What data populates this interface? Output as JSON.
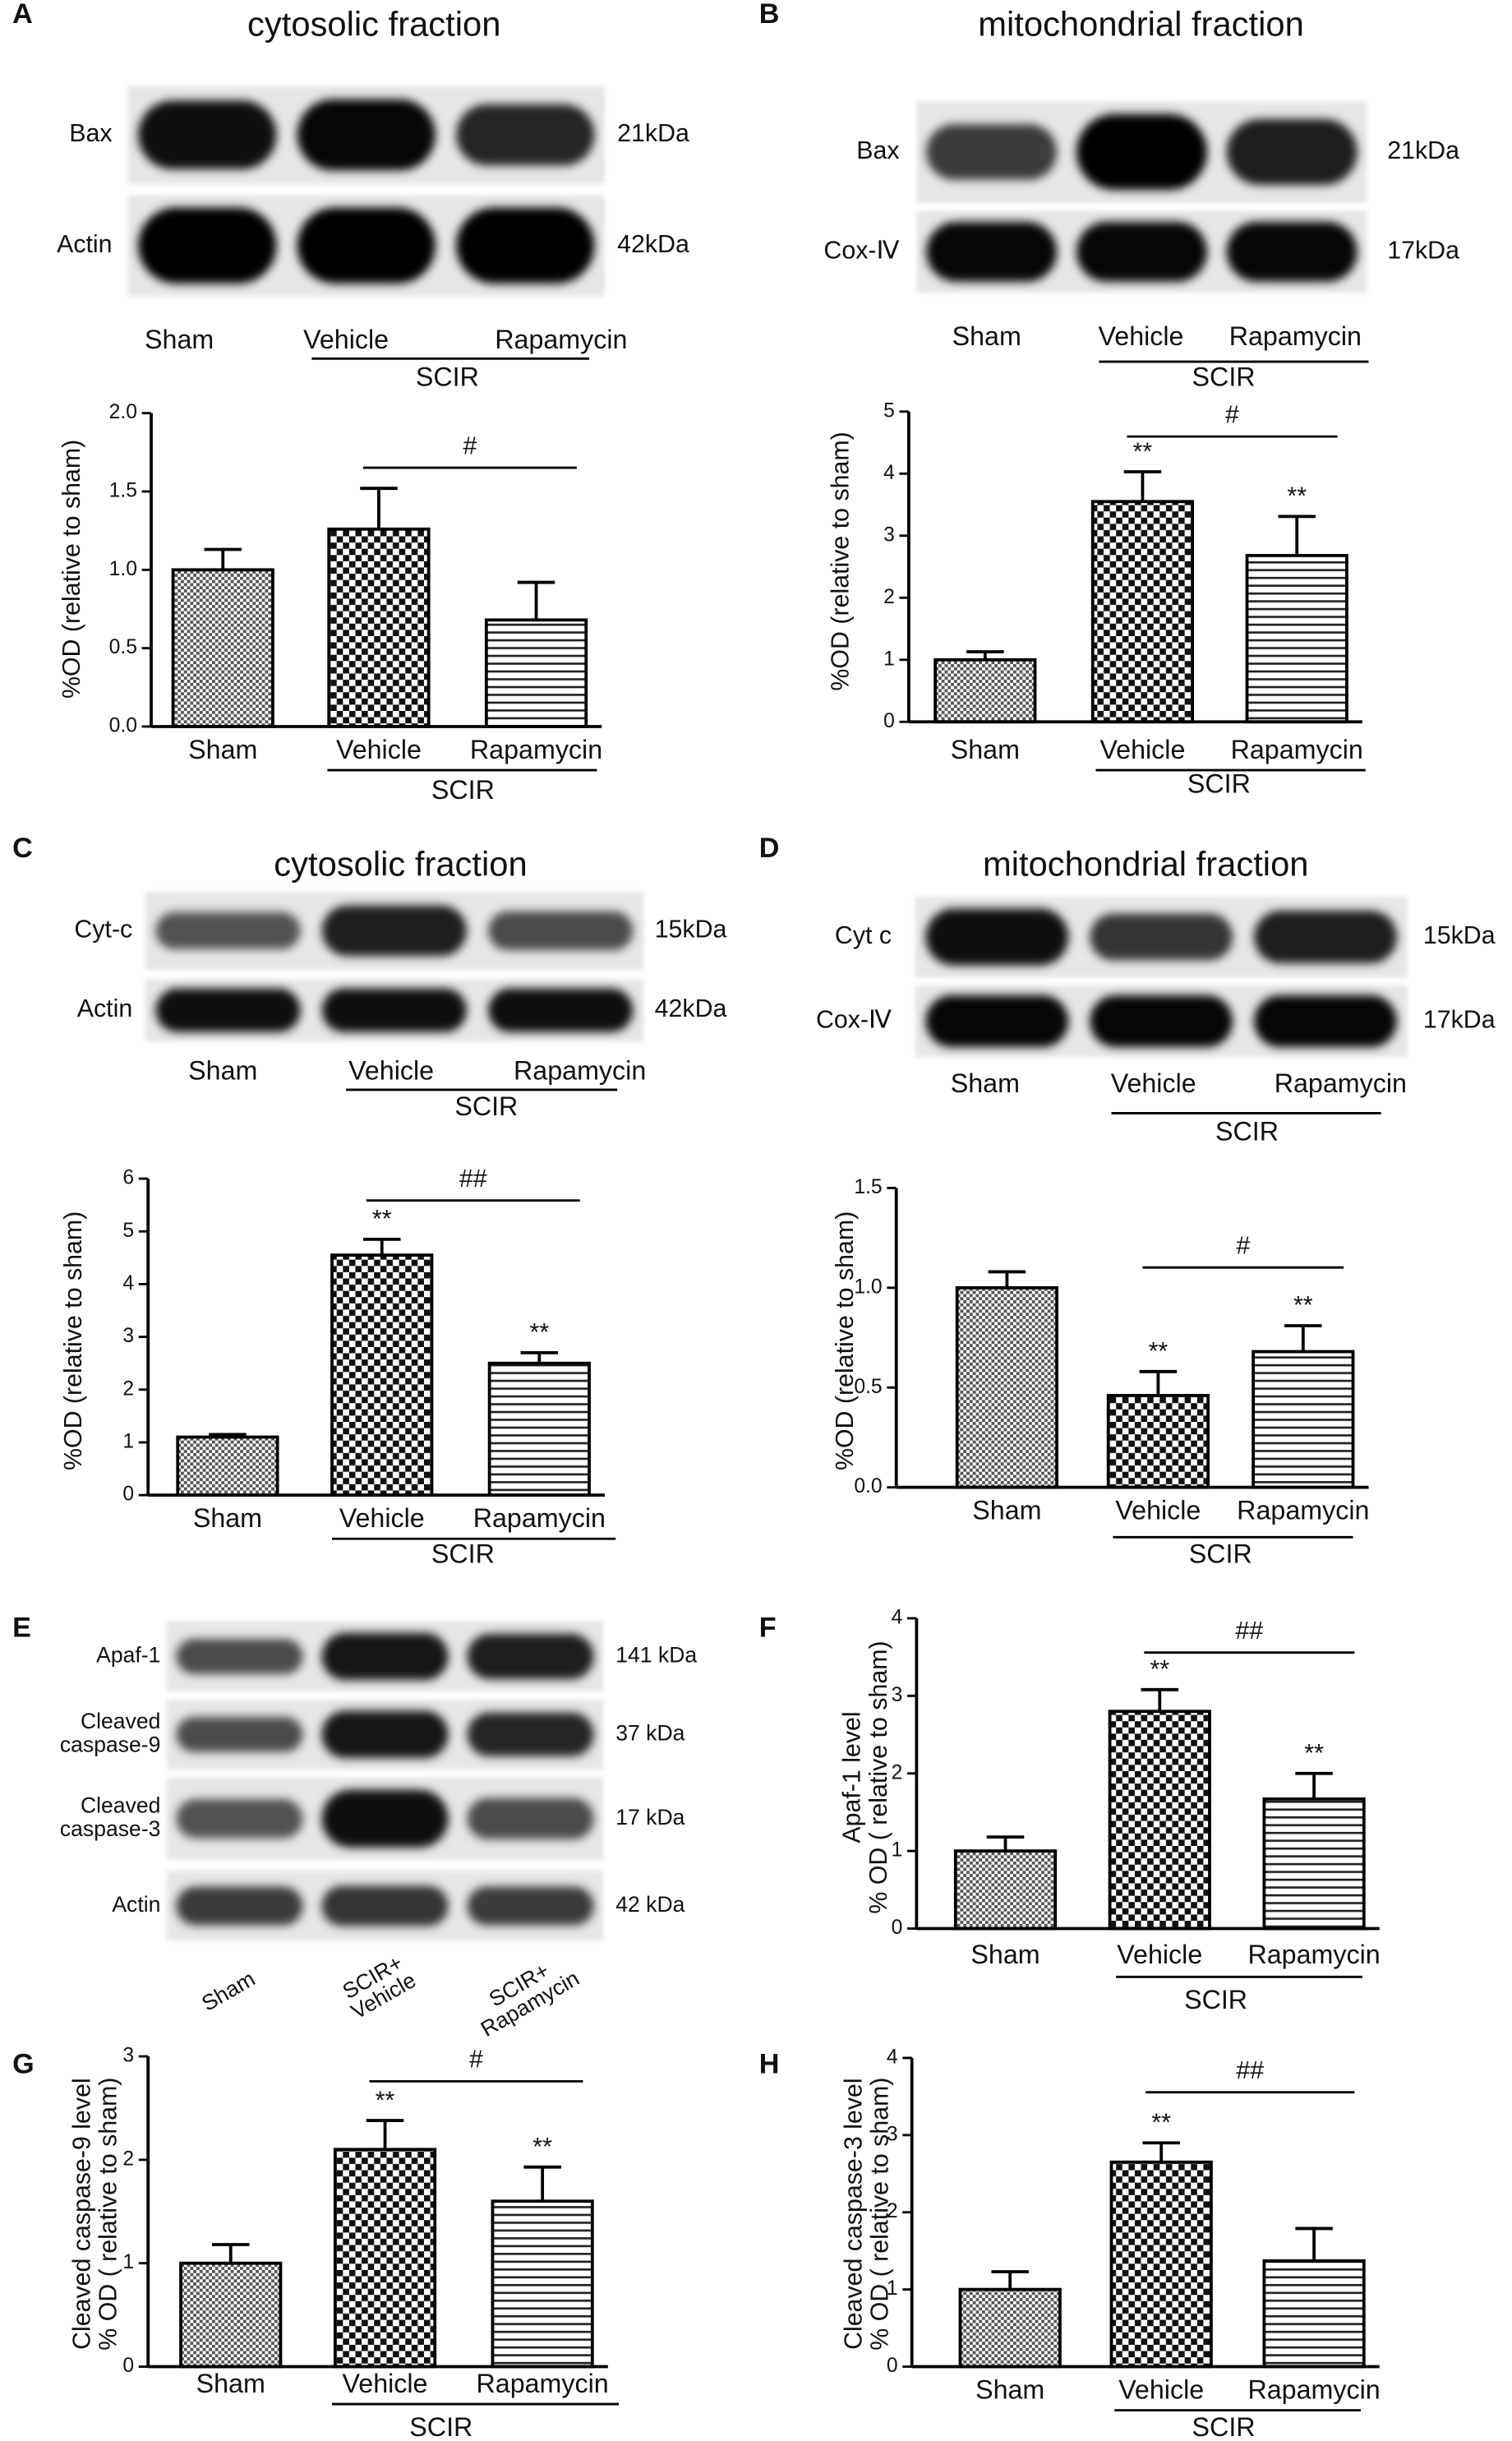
{
  "blots": [
    {
      "panel": "A",
      "title": "cytosolic fraction",
      "rows": [
        {
          "label": "Bax",
          "size": "21kDa"
        },
        {
          "label": "Actin",
          "size": "42kDa"
        }
      ],
      "lanes": [
        "Sham",
        "Vehicle",
        "Rapamycin"
      ],
      "group_label": "SCIR"
    },
    {
      "panel": "B",
      "title": "mitochondrial fraction",
      "rows": [
        {
          "label": "Bax",
          "size": "21kDa"
        },
        {
          "label": "Cox-Ⅳ",
          "size": "17kDa"
        }
      ],
      "lanes": [
        "Sham",
        "Vehicle",
        "Rapamycin"
      ],
      "group_label": "SCIR"
    },
    {
      "panel": "C",
      "title": "cytosolic fraction",
      "rows": [
        {
          "label": "Cyt-c",
          "size": "15kDa"
        },
        {
          "label": "Actin",
          "size": "42kDa"
        }
      ],
      "lanes": [
        "Sham",
        "Vehicle",
        "Rapamycin"
      ],
      "group_label": "SCIR"
    },
    {
      "panel": "D",
      "title": "mitochondrial fraction",
      "rows": [
        {
          "label": "Cyt c",
          "size": "15kDa"
        },
        {
          "label": "Cox-Ⅳ",
          "size": "17kDa"
        }
      ],
      "lanes": [
        "Sham",
        "Vehicle",
        "Rapamycin"
      ],
      "group_label": "SCIR"
    },
    {
      "panel": "E",
      "rows": [
        {
          "label": "Apaf-1",
          "size": "141 kDa"
        },
        {
          "label": [
            "Cleaved",
            "caspase-9"
          ],
          "size": "37 kDa"
        },
        {
          "label": [
            "Cleaved",
            "caspase-3"
          ],
          "size": "17 kDa"
        },
        {
          "label": "Actin",
          "size": "42 kDa"
        }
      ],
      "lanes": [
        [
          "Sham"
        ],
        [
          "SCIR+",
          "Vehicle"
        ],
        [
          "SCIR+",
          "Rapamycin"
        ]
      ]
    }
  ],
  "chart_data": [
    {
      "type": "bar",
      "ylabel": "%OD (relative to sham)",
      "categories": [
        "Sham",
        "Vehicle",
        "Rapamycin"
      ],
      "values": [
        1.0,
        1.26,
        0.68
      ],
      "errors": [
        0.13,
        0.26,
        0.24
      ],
      "markers": [
        null,
        null,
        null
      ],
      "comparison": "#",
      "group_label": "SCIR",
      "ylim": [
        0,
        2
      ],
      "yticks": [
        {
          "value": 0,
          "label": "0.0"
        },
        {
          "value": 0.5,
          "label": "0.5"
        },
        {
          "value": 1,
          "label": "1.0"
        },
        {
          "value": 1.5,
          "label": "1.5"
        },
        {
          "value": 2,
          "label": "2.0"
        }
      ]
    },
    {
      "type": "bar",
      "ylabel": "%OD (relative to sham)",
      "categories": [
        "Sham",
        "Vehicle",
        "Rapamycin"
      ],
      "values": [
        1.0,
        3.55,
        2.68
      ],
      "errors": [
        0.13,
        0.48,
        0.63
      ],
      "markers": [
        null,
        "**",
        "**"
      ],
      "comparison": "#",
      "group_label": "SCIR",
      "ylim": [
        0,
        5
      ],
      "yticks": [
        0,
        1,
        2,
        3,
        4,
        5
      ]
    },
    {
      "type": "bar",
      "ylabel": "%OD (relative to sham)",
      "categories": [
        "Sham",
        "Vehicle",
        "Rapamycin"
      ],
      "values": [
        1.1,
        4.55,
        2.5
      ],
      "errors": [
        0.05,
        0.3,
        0.2
      ],
      "markers": [
        null,
        "**",
        "**"
      ],
      "comparison": "##",
      "group_label": "SCIR",
      "ylim": [
        0,
        6
      ],
      "yticks": [
        0,
        1,
        2,
        3,
        4,
        5,
        6
      ]
    },
    {
      "type": "bar",
      "ylabel": "%OD (relative to sham)",
      "categories": [
        "Sham",
        "Vehicle",
        "Rapamycin"
      ],
      "values": [
        1.0,
        0.46,
        0.68
      ],
      "errors": [
        0.08,
        0.12,
        0.13
      ],
      "markers": [
        null,
        "**",
        "**"
      ],
      "comparison": "#",
      "group_label": "SCIR",
      "ylim": [
        0,
        1.5
      ],
      "yticks": [
        {
          "value": 0,
          "label": "0.0"
        },
        {
          "value": 0.5,
          "label": "0.5"
        },
        {
          "value": 1,
          "label": "1.0"
        },
        {
          "value": 1.5,
          "label": "1.5"
        }
      ]
    },
    {
      "type": "bar",
      "panel": "F",
      "ylabel": [
        "Apaf-1 level",
        "% OD ( relative to sham)"
      ],
      "categories": [
        "Sham",
        "Vehicle",
        "Rapamycin"
      ],
      "values": [
        1.0,
        2.8,
        1.67
      ],
      "errors": [
        0.18,
        0.28,
        0.33
      ],
      "markers": [
        null,
        "**",
        "**"
      ],
      "comparison": "##",
      "group_label": "SCIR",
      "ylim": [
        0,
        4
      ],
      "yticks": [
        0,
        1,
        2,
        3,
        4
      ]
    },
    {
      "type": "bar",
      "panel": "G",
      "ylabel": [
        "Cleaved caspase-9 level",
        "% OD ( relative to sham)"
      ],
      "categories": [
        "Sham",
        "Vehicle",
        "Rapamycin"
      ],
      "values": [
        1.0,
        2.1,
        1.6
      ],
      "errors": [
        0.18,
        0.28,
        0.33
      ],
      "markers": [
        null,
        "**",
        "**"
      ],
      "comparison": "#",
      "group_label": "SCIR",
      "ylim": [
        0,
        3
      ],
      "yticks": [
        0,
        1,
        2,
        3
      ]
    },
    {
      "type": "bar",
      "panel": "H",
      "ylabel": [
        "Cleaved caspase-3 level",
        "% OD ( relative to sham)"
      ],
      "categories": [
        "Sham",
        "Vehicle",
        "Rapamycin"
      ],
      "values": [
        1.0,
        2.65,
        1.37
      ],
      "errors": [
        0.23,
        0.25,
        0.42
      ],
      "markers": [
        null,
        "**",
        null
      ],
      "comparison": "##",
      "group_label": "SCIR",
      "ylim": [
        0,
        4
      ],
      "yticks": [
        0,
        1,
        2,
        3,
        4
      ]
    }
  ]
}
